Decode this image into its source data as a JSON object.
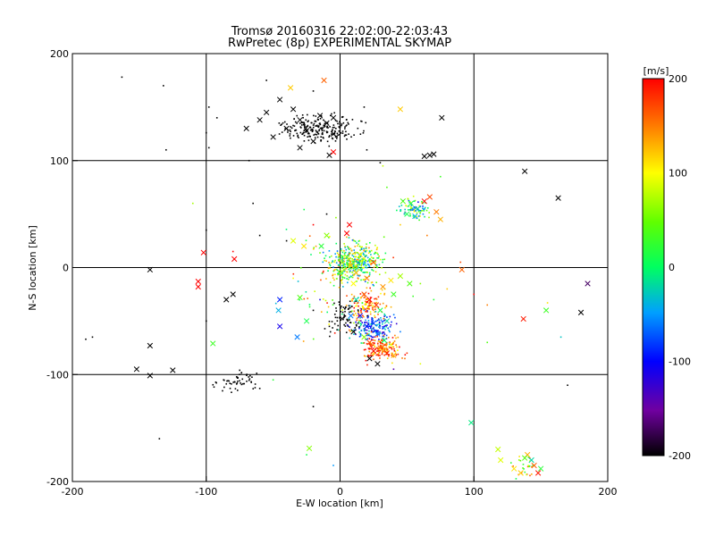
{
  "chart_data": {
    "type": "scatter",
    "title": "Tromsø 20160316 22:02:00-22:03:43",
    "subtitle": "RwPretec (8p) EXPERIMENTAL SKYMAP",
    "xlabel": "E-W location [km]",
    "ylabel": "N-S location [km]",
    "xlim": [
      -200,
      200
    ],
    "ylim": [
      -200,
      200
    ],
    "x_ticks": [
      "-200",
      "-100",
      "0",
      "100",
      "200"
    ],
    "y_ticks": [
      "-200",
      "-100",
      "0",
      "100",
      "200"
    ],
    "grid": true,
    "colorbar": {
      "label": "[m/s]",
      "range": [
        -200,
        200
      ],
      "ticks": [
        "200",
        "100",
        "0",
        "-100",
        "-200"
      ],
      "colormap": "rainbow (black-purple-blue-cyan-green-yellow-red)"
    },
    "point_markers": [
      "cross",
      "dot"
    ],
    "crosses": [
      [
        -45,
        157,
        -200
      ],
      [
        -55,
        145,
        -200
      ],
      [
        -30,
        138,
        -200
      ],
      [
        -15,
        142,
        -200
      ],
      [
        -40,
        130,
        -200
      ],
      [
        -25,
        128,
        -200
      ],
      [
        -10,
        135,
        -200
      ],
      [
        -5,
        125,
        -200
      ],
      [
        -60,
        138,
        -200
      ],
      [
        -35,
        148,
        -200
      ],
      [
        -20,
        118,
        -200
      ],
      [
        -8,
        105,
        -200
      ],
      [
        -70,
        130,
        -200
      ],
      [
        -50,
        122,
        -200
      ],
      [
        -30,
        112,
        -200
      ],
      [
        -5,
        140,
        -200
      ],
      [
        76,
        140,
        -200
      ],
      [
        63,
        104,
        -200
      ],
      [
        67,
        105,
        -200
      ],
      [
        70,
        106,
        -200
      ],
      [
        138,
        90,
        -200
      ],
      [
        163,
        65,
        -200
      ],
      [
        -142,
        -2,
        -200
      ],
      [
        -80,
        -25,
        -200
      ],
      [
        -85,
        -30,
        -200
      ],
      [
        -142,
        -73,
        -200
      ],
      [
        -152,
        -95,
        -200
      ],
      [
        -142,
        -101,
        -200
      ],
      [
        -125,
        -96,
        -200
      ],
      [
        180,
        -42,
        -200
      ],
      [
        22,
        -85,
        -200
      ],
      [
        28,
        -90,
        -200
      ],
      [
        -37,
        168,
        120
      ],
      [
        45,
        148,
        120
      ],
      [
        -12,
        175,
        160
      ],
      [
        -5,
        108,
        200
      ],
      [
        5,
        32,
        200
      ],
      [
        7,
        40,
        200
      ],
      [
        -102,
        14,
        200
      ],
      [
        -79,
        8,
        200
      ],
      [
        -106,
        -13,
        200
      ],
      [
        -106,
        -18,
        200
      ],
      [
        -35,
        25,
        90
      ],
      [
        -27,
        20,
        110
      ],
      [
        5,
        10,
        60
      ],
      [
        8,
        2,
        120
      ],
      [
        12,
        -5,
        130
      ],
      [
        15,
        12,
        100
      ],
      [
        3,
        -2,
        80
      ],
      [
        20,
        -10,
        150
      ],
      [
        25,
        5,
        170
      ],
      [
        10,
        -15,
        100
      ],
      [
        18,
        -25,
        170
      ],
      [
        22,
        -30,
        200
      ],
      [
        27,
        -35,
        180
      ],
      [
        32,
        -18,
        140
      ],
      [
        38,
        -12,
        110
      ],
      [
        45,
        -8,
        70
      ],
      [
        52,
        -15,
        40
      ],
      [
        40,
        -25,
        30
      ],
      [
        30,
        -40,
        10
      ],
      [
        35,
        -50,
        -20
      ],
      [
        25,
        -52,
        -80
      ],
      [
        20,
        -55,
        -100
      ],
      [
        15,
        -45,
        -120
      ],
      [
        28,
        -62,
        -60
      ],
      [
        33,
        -68,
        0
      ],
      [
        38,
        -72,
        100
      ],
      [
        30,
        -75,
        150
      ],
      [
        25,
        -78,
        200
      ],
      [
        35,
        -80,
        180
      ],
      [
        40,
        -82,
        130
      ],
      [
        22,
        -70,
        170
      ],
      [
        18,
        -65,
        60
      ],
      [
        10,
        -60,
        -200
      ],
      [
        8,
        -45,
        -60
      ],
      [
        12,
        -30,
        -20
      ],
      [
        -25,
        -50,
        10
      ],
      [
        -30,
        -28,
        40
      ],
      [
        -45,
        -30,
        -90
      ],
      [
        -45,
        -55,
        -110
      ],
      [
        -32,
        -65,
        -60
      ],
      [
        -46,
        -40,
        -40
      ],
      [
        -95,
        -71,
        30
      ],
      [
        -23,
        -169,
        60
      ],
      [
        118,
        -170,
        80
      ],
      [
        120,
        -180,
        90
      ],
      [
        130,
        -188,
        110
      ],
      [
        135,
        -192,
        120
      ],
      [
        140,
        -175,
        130
      ],
      [
        145,
        -185,
        160
      ],
      [
        148,
        -192,
        190
      ],
      [
        138,
        -178,
        40
      ],
      [
        143,
        -180,
        -20
      ],
      [
        150,
        -188,
        20
      ],
      [
        98,
        -145,
        -10
      ],
      [
        91,
        -2,
        160
      ],
      [
        137,
        -48,
        190
      ],
      [
        154,
        -40,
        30
      ],
      [
        185,
        -15,
        -170
      ],
      [
        47,
        62,
        40
      ],
      [
        53,
        60,
        20
      ],
      [
        58,
        55,
        -20
      ],
      [
        63,
        62,
        200
      ],
      [
        67,
        66,
        170
      ],
      [
        72,
        52,
        150
      ],
      [
        75,
        45,
        130
      ],
      [
        50,
        50,
        10
      ],
      [
        56,
        48,
        -40
      ],
      [
        0,
        -5,
        60
      ],
      [
        -10,
        30,
        60
      ],
      [
        -14,
        20,
        20
      ]
    ],
    "clusters": [
      {
        "cx": -15,
        "cy": 130,
        "sx": 20,
        "sy": 8,
        "n": 230,
        "v": -200,
        "spread": 0
      },
      {
        "cx": 10,
        "cy": 5,
        "sx": 13,
        "sy": 13,
        "n": 420,
        "v": 40,
        "spread": 110
      },
      {
        "cx": 20,
        "cy": -35,
        "sx": 9,
        "sy": 9,
        "n": 120,
        "v": 150,
        "spread": 60
      },
      {
        "cx": 25,
        "cy": -55,
        "sx": 10,
        "sy": 9,
        "n": 170,
        "v": -70,
        "spread": 70
      },
      {
        "cx": 32,
        "cy": -75,
        "sx": 9,
        "sy": 8,
        "n": 170,
        "v": 160,
        "spread": 60
      },
      {
        "cx": 5,
        "cy": -45,
        "sx": 10,
        "sy": 10,
        "n": 70,
        "v": -200,
        "spread": 0
      },
      {
        "cx": 55,
        "cy": 55,
        "sx": 8,
        "sy": 7,
        "n": 90,
        "v": 0,
        "spread": 110
      },
      {
        "cx": -73,
        "cy": -108,
        "sx": 12,
        "sy": 6,
        "n": 50,
        "v": -200,
        "spread": 0
      },
      {
        "cx": 0,
        "cy": -20,
        "sx": 30,
        "sy": 40,
        "n": 90,
        "v": 80,
        "spread": 120
      },
      {
        "cx": 140,
        "cy": -185,
        "sx": 8,
        "sy": 8,
        "n": 25,
        "v": 100,
        "spread": 90
      }
    ],
    "sparse_points": [
      [
        -163,
        178,
        -200
      ],
      [
        -132,
        170,
        -200
      ],
      [
        -98,
        150,
        -200
      ],
      [
        -92,
        140,
        -200
      ],
      [
        -100,
        126,
        -200
      ],
      [
        -98,
        112,
        -200
      ],
      [
        -130,
        110,
        -200
      ],
      [
        -55,
        175,
        -200
      ],
      [
        -20,
        165,
        -200
      ],
      [
        18,
        150,
        -200
      ],
      [
        5,
        120,
        -200
      ],
      [
        20,
        110,
        -200
      ],
      [
        30,
        98,
        -200
      ],
      [
        -68,
        100,
        -200
      ],
      [
        -185,
        -65,
        -200
      ],
      [
        -190,
        -67,
        -200
      ],
      [
        -135,
        -160,
        -200
      ],
      [
        -20,
        -130,
        -200
      ],
      [
        170,
        -110,
        -200
      ],
      [
        -100,
        35,
        -200
      ],
      [
        -60,
        30,
        -200
      ],
      [
        -40,
        25,
        -200
      ],
      [
        -80,
        15,
        200
      ],
      [
        -100,
        -50,
        -200
      ],
      [
        -75,
        -96,
        -200
      ],
      [
        -87,
        -105,
        -200
      ],
      [
        -60,
        -113,
        -200
      ],
      [
        75,
        85,
        30
      ],
      [
        32,
        95,
        80
      ],
      [
        35,
        75,
        40
      ],
      [
        45,
        40,
        120
      ],
      [
        65,
        30,
        150
      ],
      [
        90,
        5,
        170
      ],
      [
        100,
        -25,
        200
      ],
      [
        110,
        -35,
        150
      ],
      [
        60,
        -15,
        60
      ],
      [
        70,
        -30,
        20
      ],
      [
        80,
        -20,
        120
      ],
      [
        110,
        -70,
        40
      ],
      [
        165,
        -65,
        -30
      ],
      [
        155,
        -33,
        110
      ],
      [
        -65,
        60,
        -200
      ],
      [
        -20,
        40,
        200
      ],
      [
        -110,
        60,
        70
      ],
      [
        50,
        -80,
        180
      ],
      [
        60,
        -90,
        90
      ],
      [
        -5,
        -185,
        -50
      ],
      [
        -25,
        -175,
        10
      ],
      [
        40,
        -95,
        -140
      ],
      [
        -50,
        -105,
        20
      ],
      [
        45,
        -60,
        -60
      ],
      [
        -15,
        -30,
        -110
      ],
      [
        -8,
        -55,
        -200
      ],
      [
        -20,
        -40,
        -200
      ],
      [
        -35,
        -10,
        100
      ],
      [
        -10,
        50,
        -200
      ]
    ]
  }
}
